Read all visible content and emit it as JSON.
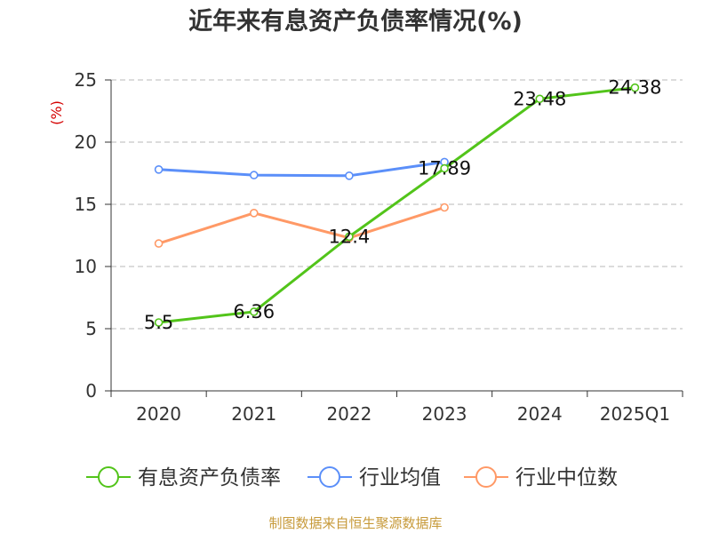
{
  "chart_data": {
    "type": "line",
    "title": "近年来有息资产负债率情况(%)",
    "ylabel": "(%)",
    "categories": [
      "2020",
      "2021",
      "2022",
      "2023",
      "2024",
      "2025Q1"
    ],
    "ylim": [
      0,
      25
    ],
    "yticks": [
      0,
      5,
      10,
      15,
      20,
      25
    ],
    "grid": true,
    "legend_position": "bottom",
    "series": [
      {
        "name": "有息资产负债率",
        "color": "#52c41a",
        "values": [
          5.5,
          6.36,
          12.4,
          17.89,
          23.48,
          24.38
        ],
        "labels": [
          "5.5",
          "6.36",
          "12.4",
          "17.89",
          "23.48",
          "24.38"
        ]
      },
      {
        "name": "行业均值",
        "color": "#5b8ff9",
        "values": [
          17.8,
          17.35,
          17.3,
          18.4,
          null,
          null
        ]
      },
      {
        "name": "行业中位数",
        "color": "#ff9966",
        "values": [
          11.85,
          14.3,
          12.3,
          14.75,
          null,
          null
        ]
      }
    ],
    "source": "制图数据来自恒生聚源数据库"
  }
}
